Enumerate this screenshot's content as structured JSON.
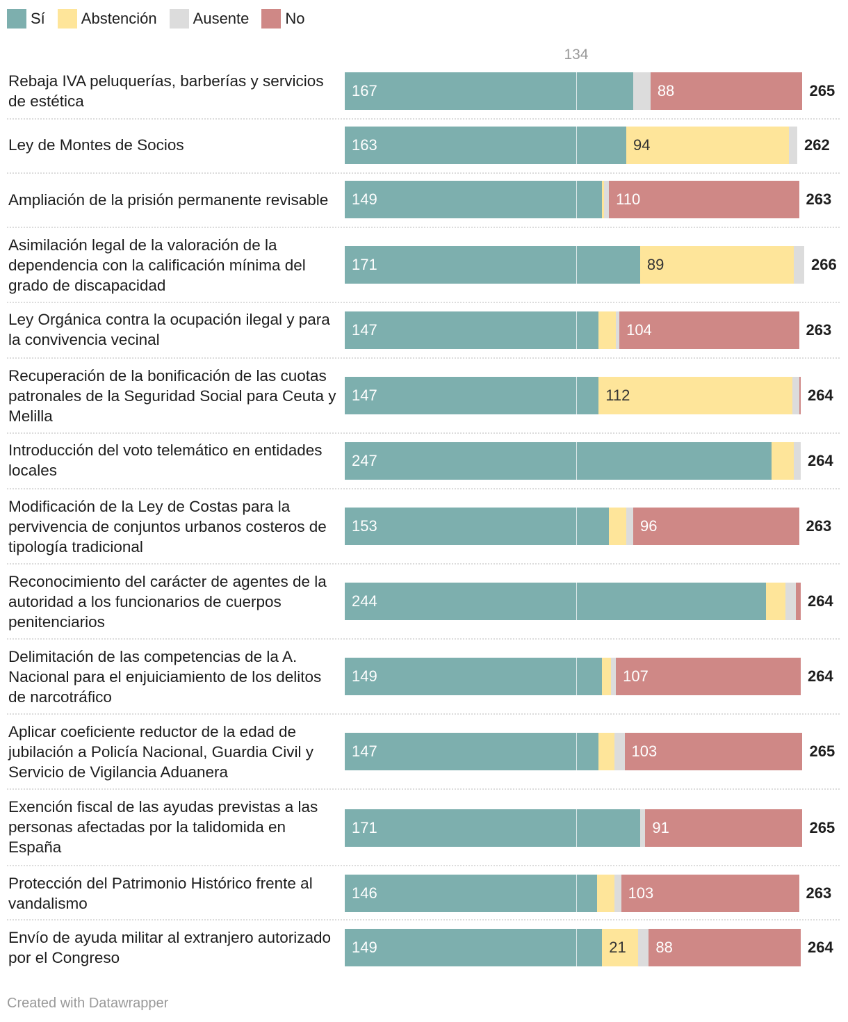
{
  "legend": [
    {
      "key": "si",
      "label": "Sí",
      "color": "#7dafae"
    },
    {
      "key": "abstencion",
      "label": "Abstención",
      "color": "#fee59a"
    },
    {
      "key": "ausente",
      "label": "Ausente",
      "color": "#dcdcdc"
    },
    {
      "key": "no",
      "label": "No",
      "color": "#cf8886"
    }
  ],
  "footer": "Created with Datawrapper",
  "chart_data": {
    "type": "bar",
    "orientation": "horizontal-stacked",
    "reference_line": {
      "value": 134,
      "label": "134"
    },
    "series_order": [
      "si",
      "abstencion",
      "ausente",
      "no"
    ],
    "rows": [
      {
        "label": "Rebaja IVA peluquerías, barberías y servicios de estética",
        "si": 167,
        "abstencion": 0,
        "ausente": 10,
        "no": 88,
        "total": 265,
        "shown": {
          "si": "167",
          "no": "88"
        }
      },
      {
        "label": "Ley de Montes de Socios",
        "si": 163,
        "abstencion": 94,
        "ausente": 5,
        "no": 0,
        "total": 262,
        "shown": {
          "si": "163",
          "abstencion": "94"
        }
      },
      {
        "label": "Ampliación de la prisión permanente revisable",
        "si": 149,
        "abstencion": 1,
        "ausente": 3,
        "no": 110,
        "total": 263,
        "shown": {
          "si": "149",
          "no": "110"
        }
      },
      {
        "label": "Asimilación legal de la valoración de la dependencia con la calificación mínima del grado de discapacidad",
        "si": 171,
        "abstencion": 89,
        "ausente": 6,
        "no": 0,
        "total": 266,
        "shown": {
          "si": "171",
          "abstencion": "89"
        }
      },
      {
        "label": "Ley Orgánica contra la ocupación ilegal y para la convivencia vecinal",
        "si": 147,
        "abstencion": 10,
        "ausente": 2,
        "no": 104,
        "total": 263,
        "shown": {
          "si": "147",
          "no": "104"
        }
      },
      {
        "label": "Recuperación de la bonificación de las cuotas patronales de la Seguridad Social para Ceuta y Melilla",
        "si": 147,
        "abstencion": 112,
        "ausente": 4,
        "no": 1,
        "total": 264,
        "shown": {
          "si": "147",
          "abstencion": "112"
        }
      },
      {
        "label": "Introducción del voto telemático en entidades locales",
        "si": 247,
        "abstencion": 13,
        "ausente": 4,
        "no": 0,
        "total": 264,
        "shown": {
          "si": "247"
        }
      },
      {
        "label": "Modificación de la Ley de Costas para la pervivencia de conjuntos urbanos costeros de tipología tradicional",
        "si": 153,
        "abstencion": 10,
        "ausente": 4,
        "no": 96,
        "total": 263,
        "shown": {
          "si": "153",
          "no": "96"
        }
      },
      {
        "label": "Reconocimiento del carácter de agentes de la autoridad a los funcionarios de cuerpos penitenciarios",
        "si": 244,
        "abstencion": 11,
        "ausente": 6,
        "no": 3,
        "total": 264,
        "shown": {
          "si": "244"
        }
      },
      {
        "label": "Delimitación de las competencias de la A. Nacional para el enjuiciamiento de los delitos de narcotráfico",
        "si": 149,
        "abstencion": 5,
        "ausente": 3,
        "no": 107,
        "total": 264,
        "shown": {
          "si": "149",
          "no": "107"
        }
      },
      {
        "label": "Aplicar coeficiente reductor de la edad de jubilación a Policía Nacional, Guardia Civil y Servicio de Vigilancia Aduanera",
        "si": 147,
        "abstencion": 9,
        "ausente": 6,
        "no": 103,
        "total": 265,
        "shown": {
          "si": "147",
          "no": "103"
        }
      },
      {
        "label": "Exención fiscal de las ayudas previstas a las personas afectadas por la talidomida en España",
        "si": 171,
        "abstencion": 0,
        "ausente": 3,
        "no": 91,
        "total": 265,
        "shown": {
          "si": "171",
          "no": "91"
        }
      },
      {
        "label": "Protección del Patrimonio Histórico frente al vandalismo",
        "si": 146,
        "abstencion": 10,
        "ausente": 4,
        "no": 103,
        "total": 263,
        "shown": {
          "si": "146",
          "no": "103"
        }
      },
      {
        "label": "Envío de ayuda militar al extranjero autorizado por el Congreso",
        "si": 149,
        "abstencion": 21,
        "ausente": 6,
        "no": 88,
        "total": 264,
        "shown": {
          "si": "149",
          "abstencion": "21",
          "no": "88"
        }
      }
    ]
  }
}
